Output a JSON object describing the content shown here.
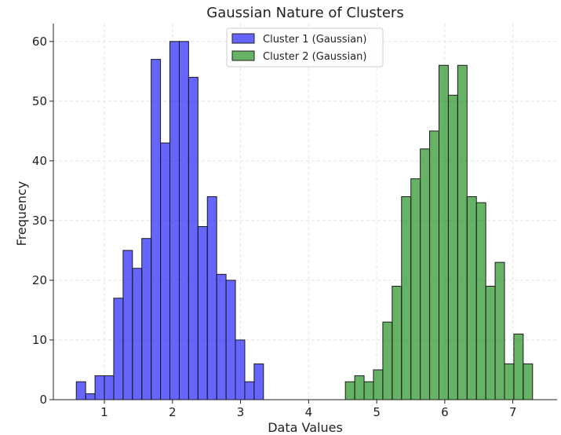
{
  "chart_data": {
    "type": "bar",
    "subtype": "histogram",
    "title": "Gaussian Nature of Clusters",
    "xlabel": "Data Values",
    "ylabel": "Frequency",
    "xlim": [
      0.25,
      7.65
    ],
    "ylim": [
      0,
      63
    ],
    "xticks": [
      1,
      2,
      3,
      4,
      5,
      6,
      7
    ],
    "yticks": [
      0,
      10,
      20,
      30,
      40,
      50,
      60
    ],
    "grid": true,
    "legend_position": "top-center",
    "series": [
      {
        "name": "Cluster 1 (Gaussian)",
        "color": "#0000ff",
        "bin_start": 0.587,
        "bin_width": 0.1375,
        "values": [
          3,
          1,
          4,
          4,
          17,
          25,
          22,
          27,
          57,
          43,
          60,
          60,
          54,
          29,
          34,
          21,
          20,
          10,
          3,
          6
        ]
      },
      {
        "name": "Cluster 2 (Gaussian)",
        "color": "#008000",
        "bin_start": 4.54,
        "bin_width": 0.1375,
        "values": [
          3,
          4,
          3,
          5,
          13,
          19,
          34,
          37,
          42,
          45,
          56,
          51,
          56,
          34,
          33,
          19,
          23,
          6,
          11,
          6
        ]
      }
    ]
  }
}
